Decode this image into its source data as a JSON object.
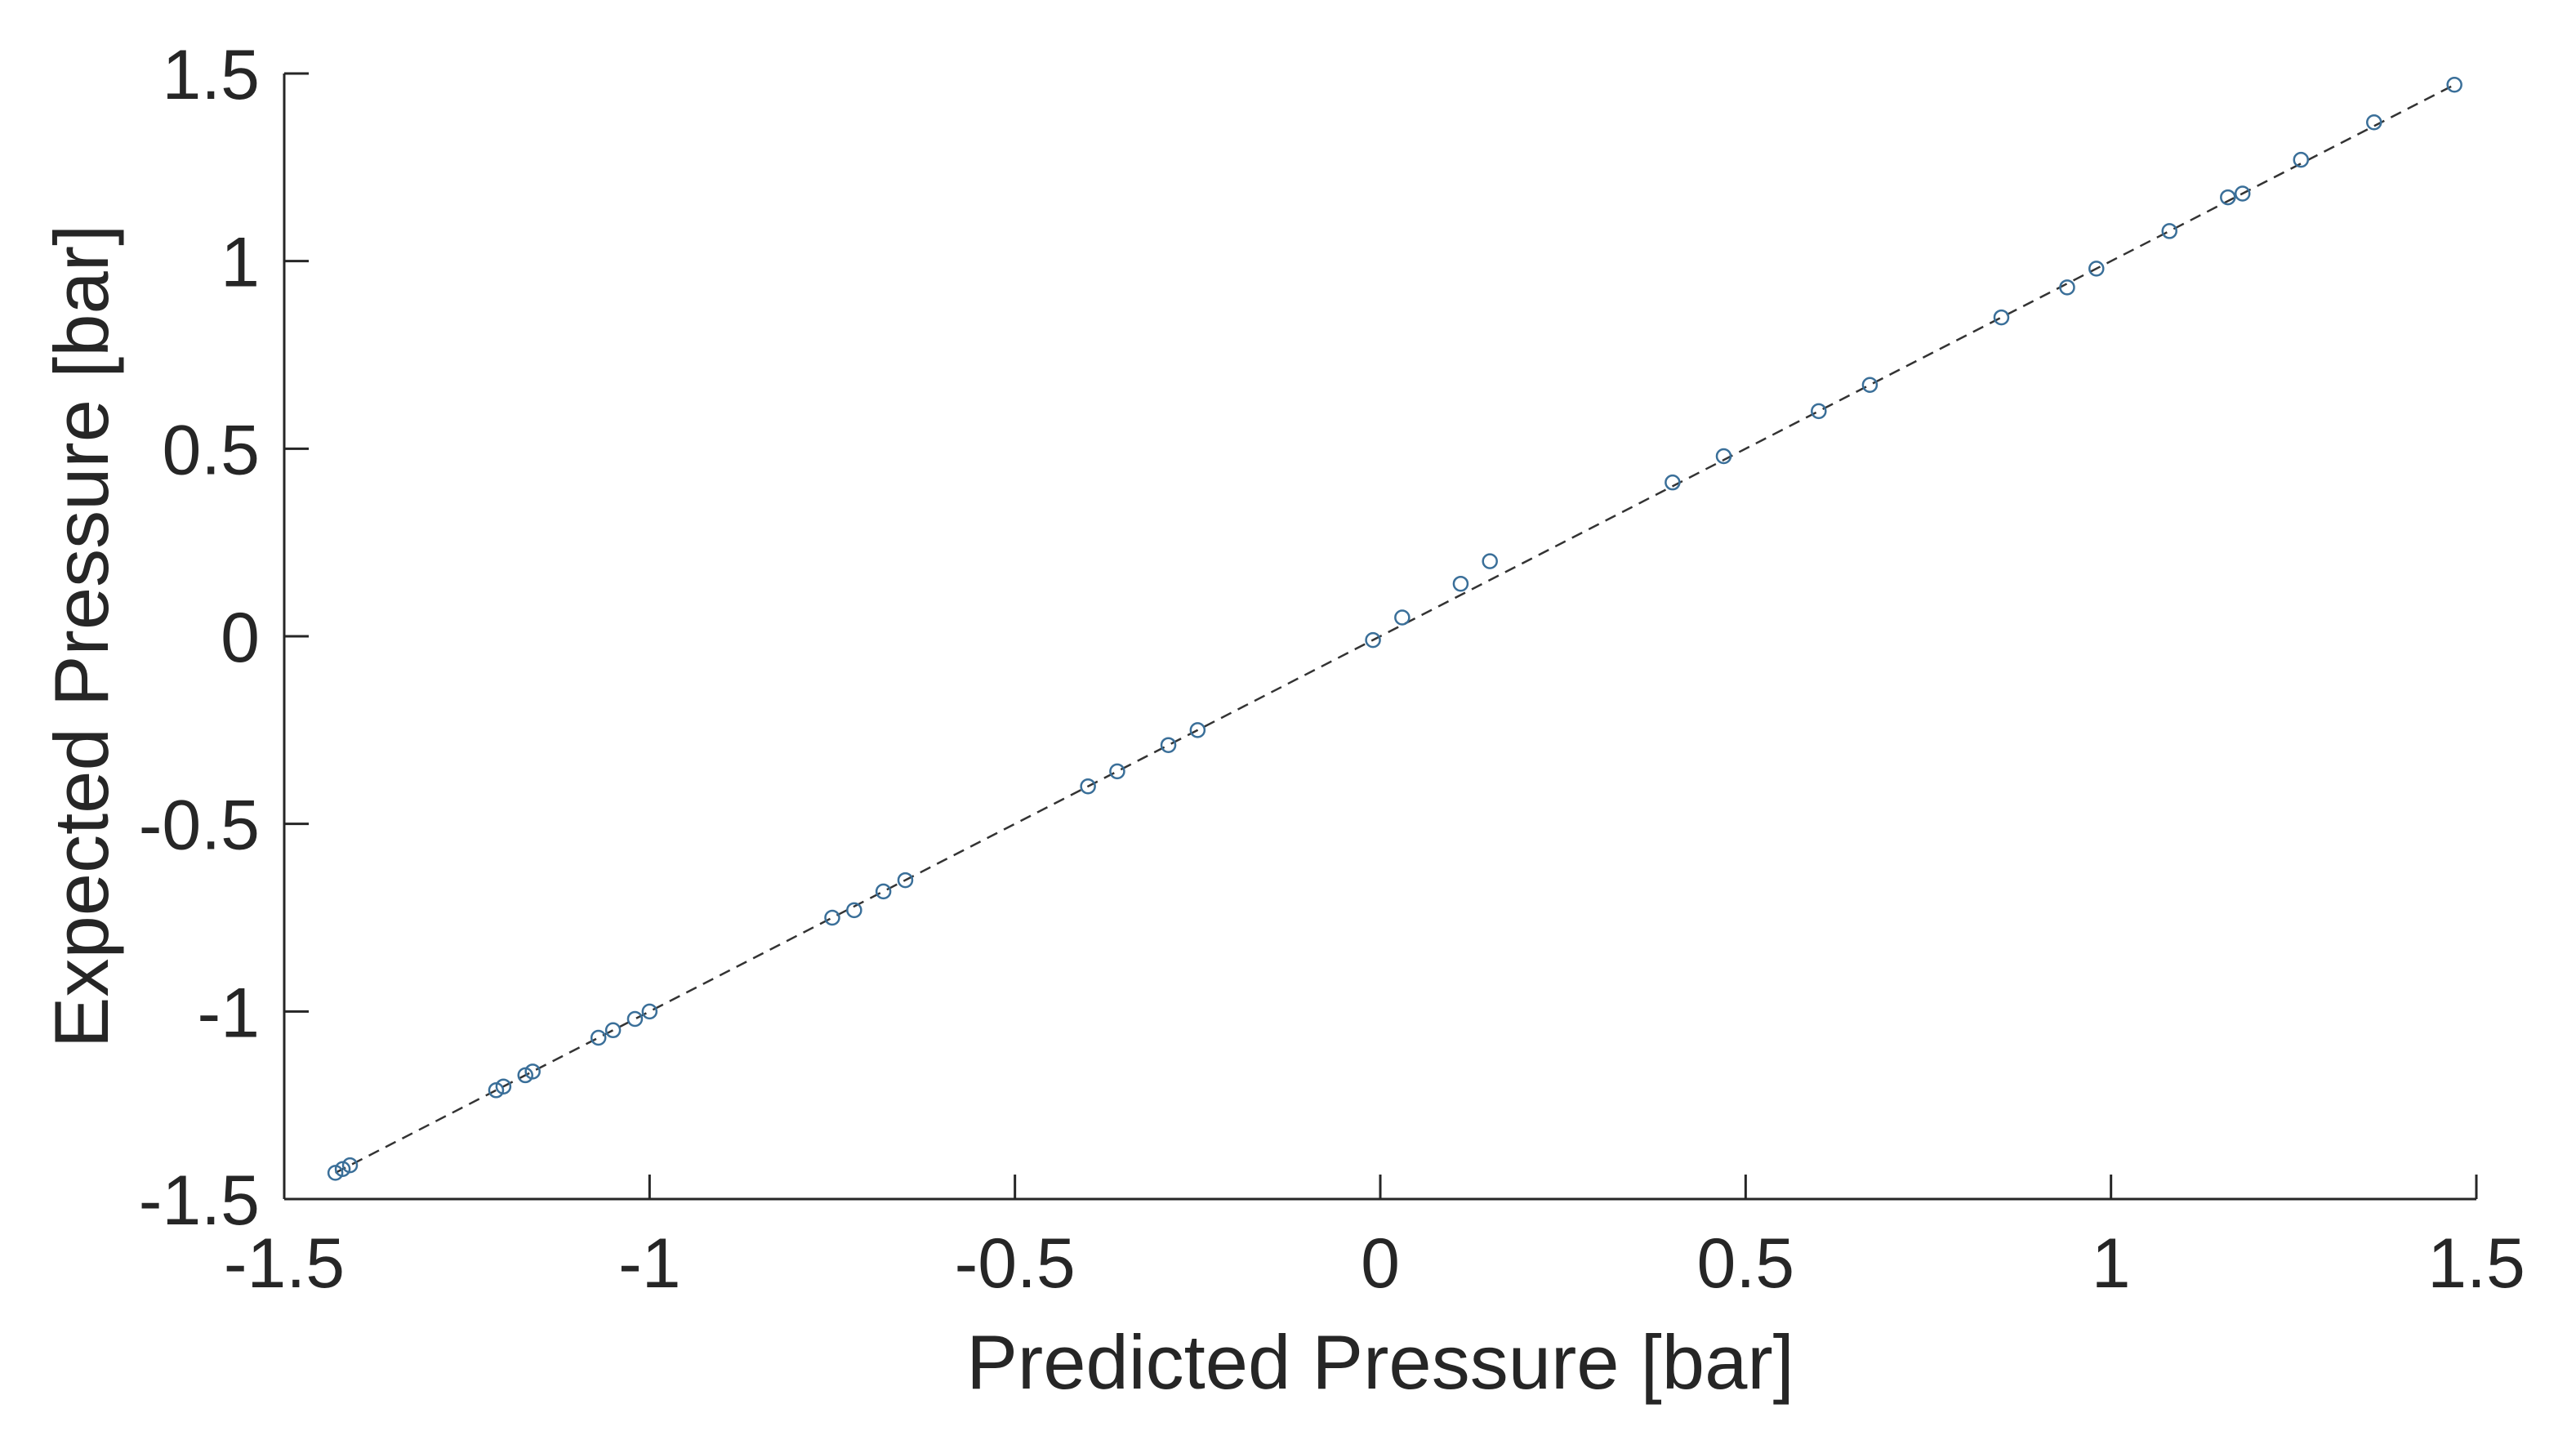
{
  "chart_data": {
    "type": "scatter",
    "title": "",
    "xlabel": "Predicted Pressure [bar]",
    "ylabel": "Expected Pressure [bar]",
    "xlim": [
      -1.5,
      1.5
    ],
    "ylim": [
      -1.5,
      1.5
    ],
    "xticks": [
      -1.5,
      -1,
      -0.5,
      0,
      0.5,
      1,
      1.5
    ],
    "yticks": [
      -1.5,
      -1,
      -0.5,
      0,
      0.5,
      1,
      1.5
    ],
    "xtick_labels": [
      "-1.5",
      "-1",
      "-0.5",
      "0",
      "0.5",
      "1",
      "1.5"
    ],
    "ytick_labels": [
      "-1.5",
      "-1",
      "-0.5",
      "0",
      "0.5",
      "1",
      "1.5"
    ],
    "grid": false,
    "reference_line": {
      "style": "dashed",
      "color": "#333333",
      "from": [
        -1.43,
        -1.43
      ],
      "to": [
        1.47,
        1.47
      ]
    },
    "marker_color": "#3a6f99",
    "series": [
      {
        "marker": "circle",
        "x": [
          -1.43,
          -1.42,
          -1.41,
          -1.21,
          -1.2,
          -1.17,
          -1.16,
          -1.07,
          -1.05,
          -1.02,
          -1.0,
          -0.75,
          -0.72,
          -0.68,
          -0.65,
          -0.4,
          -0.36,
          -0.29,
          -0.25,
          -0.01,
          0.03,
          0.11,
          0.15,
          0.4,
          0.47,
          0.6,
          0.67,
          0.85,
          0.94,
          0.98,
          1.08,
          1.16,
          1.18,
          1.26,
          1.36,
          1.47
        ],
        "y": [
          -1.43,
          -1.42,
          -1.41,
          -1.21,
          -1.2,
          -1.17,
          -1.16,
          -1.07,
          -1.05,
          -1.02,
          -1.0,
          -0.75,
          -0.73,
          -0.68,
          -0.65,
          -0.4,
          -0.36,
          -0.29,
          -0.25,
          -0.01,
          0.05,
          0.14,
          0.2,
          0.41,
          0.48,
          0.6,
          0.67,
          0.85,
          0.93,
          0.98,
          1.08,
          1.17,
          1.18,
          1.27,
          1.37,
          1.47
        ]
      }
    ]
  }
}
